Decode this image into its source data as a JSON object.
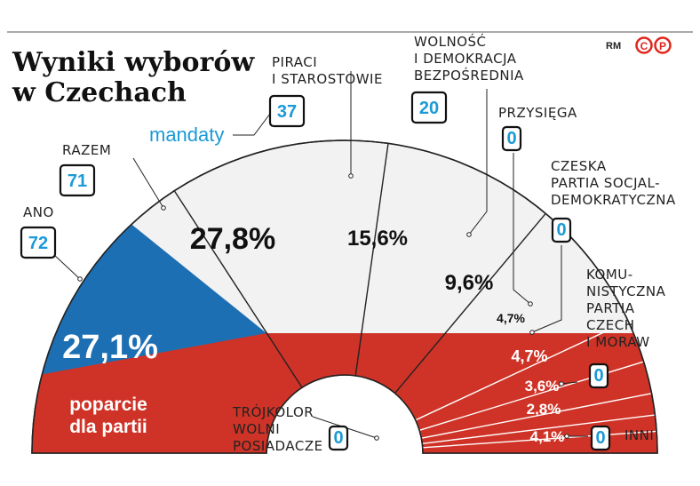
{
  "title": [
    "Wyniki wyborów",
    "w Czechach"
  ],
  "legend_seats": "mandaty",
  "legend_support": [
    "poparcie",
    "dla partii"
  ],
  "credit": "RM",
  "colors": {
    "blue": "#1d6fb4",
    "red": "#cf3327",
    "white": "#f2f2f2",
    "accent": "#1a9ad6",
    "logo": "#e1261c"
  },
  "chart_data": {
    "type": "pie",
    "title": "Wyniki wyborów w Czechach",
    "series": [
      {
        "name": "ANO",
        "label": [
          "ANO"
        ],
        "support_label": "27,1%",
        "support": 27.1,
        "seats": 72
      },
      {
        "name": "RAZEM",
        "label": [
          "RAZEM"
        ],
        "support_label": "27,8%",
        "support": 27.8,
        "seats": 71
      },
      {
        "name": "PIRACI I STAROSTOWIE",
        "label": [
          "PIRACI",
          "I STAROSTOWIE"
        ],
        "support_label": "15,6%",
        "support": 15.6,
        "seats": 37
      },
      {
        "name": "WOLNOŚĆ I DEMOKRACJA BEZPOŚREDNIA",
        "label": [
          "WOLNOŚĆ",
          "I DEMOKRACJA",
          "BEZPOŚREDNIA"
        ],
        "support_label": "9,6%",
        "support": 9.6,
        "seats": 20
      },
      {
        "name": "PRZYSIĘGA",
        "label": [
          "PRZYSIĘGA"
        ],
        "support_label": "4,7%",
        "support": 4.7,
        "seats": 0
      },
      {
        "name": "CZESKA PARTIA SOCJALDEMOKRATYCZNA",
        "label": [
          "CZESKA",
          "PARTIA SOCJAL-",
          "DEMOKRATYCZNA"
        ],
        "support_label": "4,7%",
        "support": 4.7,
        "seats": 0
      },
      {
        "name": "KOMUNISTYCZNA PARTIA CZECH I MORAW",
        "label": [
          "KOMU-",
          "NISTYCZNA",
          "PARTIA",
          "CZECH",
          "I MORAW"
        ],
        "support_label": "3,6%",
        "support": 3.6,
        "seats": 0
      },
      {
        "name": "TRÓJKOLOR WOLNI POSIADACZE",
        "label": [
          "TRÓJKOLOR",
          "WOLNI",
          "POSIADACZE"
        ],
        "support_label": "2,8%",
        "support": 2.8,
        "seats": 0
      },
      {
        "name": "INNI",
        "label": [
          "INNI"
        ],
        "support_label": "4,1%",
        "support": 4.1,
        "seats": 0
      }
    ]
  }
}
